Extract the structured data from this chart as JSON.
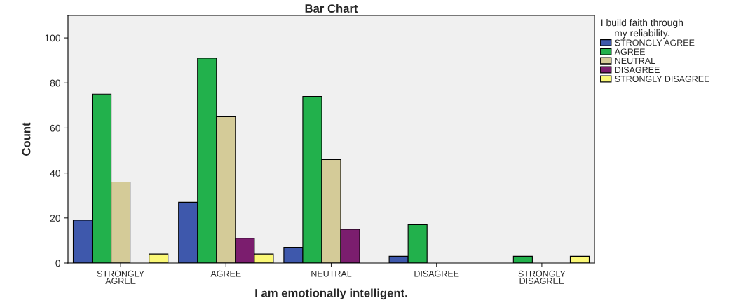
{
  "chart_data": {
    "type": "bar",
    "title": "Bar Chart",
    "xlabel": "I am emotionally intelligent.",
    "ylabel": "Count",
    "legend_title": "I build faith through\nmy reliability.",
    "categories": [
      "STRONGLY AGREE",
      "AGREE",
      "NEUTRAL",
      "DISAGREE",
      "STRONGLY DISAGREE"
    ],
    "series": [
      {
        "name": "STRONGLY AGREE",
        "color": "#3e58ac",
        "values": [
          19,
          27,
          7,
          3,
          null
        ]
      },
      {
        "name": "AGREE",
        "color": "#22b14c",
        "values": [
          75,
          91,
          74,
          17,
          3
        ]
      },
      {
        "name": "NEUTRAL",
        "color": "#d4cb98",
        "values": [
          36,
          65,
          46,
          null,
          null
        ]
      },
      {
        "name": "DISAGREE",
        "color": "#7b1d6e",
        "values": [
          null,
          11,
          15,
          null,
          null
        ]
      },
      {
        "name": "STRONGLY DISAGREE",
        "color": "#fbf877",
        "values": [
          4,
          4,
          null,
          null,
          3
        ]
      }
    ],
    "ylim": [
      0,
      110
    ],
    "yticks": [
      0,
      20,
      40,
      60,
      80,
      100
    ],
    "grid": false,
    "legend": "top right"
  }
}
